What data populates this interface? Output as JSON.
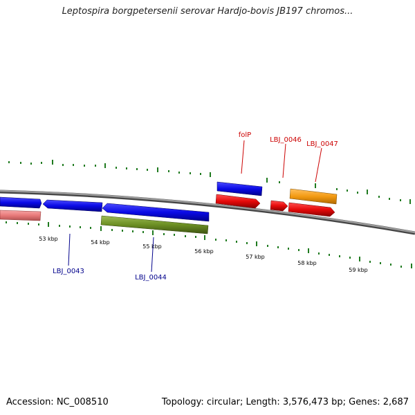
{
  "title": "Leptospira borgpetersenii serovar Hardjo-bovis JB197 chromos...",
  "footer": {
    "accession": "Accession: NC_008510",
    "summary": "Topology: circular; Length: 3,576,473 bp; Genes: 2,687"
  },
  "colors": {
    "backbone": "#777777",
    "tick": "#1f7a1f",
    "forward_gene": "#0a0ae6",
    "reverse_gene": "#e60a0a",
    "pink_gene": "#e87a7a",
    "olive_gene": "#6b8e23",
    "orange_gene": "#f39a12",
    "label_blue": "#00008b",
    "label_red": "#cc0000"
  },
  "scale_labels": [
    "53 kbp",
    "54 kbp",
    "55 kbp",
    "56 kbp",
    "57 kbp",
    "58 kbp",
    "59 kbp"
  ],
  "gene_labels": [
    {
      "text": "folP",
      "color": "label_red"
    },
    {
      "text": "LBJ_0046",
      "color": "label_red"
    },
    {
      "text": "LBJ_0047",
      "color": "label_red"
    },
    {
      "text": "LBJ_0043",
      "color": "label_blue"
    },
    {
      "text": "LBJ_0044",
      "color": "label_blue"
    }
  ]
}
